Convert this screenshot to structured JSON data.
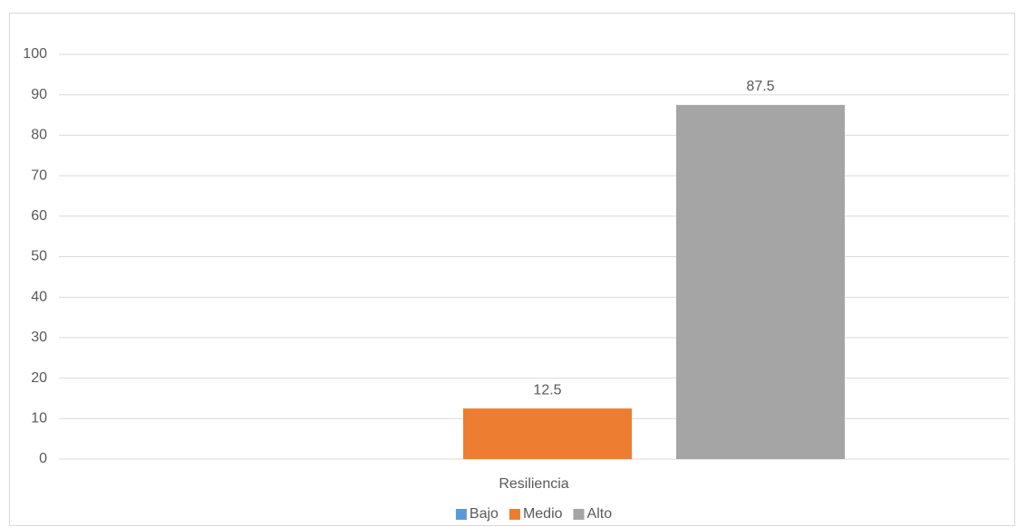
{
  "chart_data": {
    "type": "bar",
    "categories": [
      "Resiliencia"
    ],
    "series": [
      {
        "name": "Bajo",
        "color": "#5b9bd5",
        "values": [
          0
        ]
      },
      {
        "name": "Medio",
        "color": "#ed7d31",
        "values": [
          12.5
        ]
      },
      {
        "name": "Alto",
        "color": "#a5a5a5",
        "values": [
          87.5
        ]
      }
    ],
    "ylim": [
      0,
      100
    ],
    "yticks": [
      0,
      10,
      20,
      30,
      40,
      50,
      60,
      70,
      80,
      90,
      100
    ],
    "grid": true,
    "legend": "bottom"
  }
}
